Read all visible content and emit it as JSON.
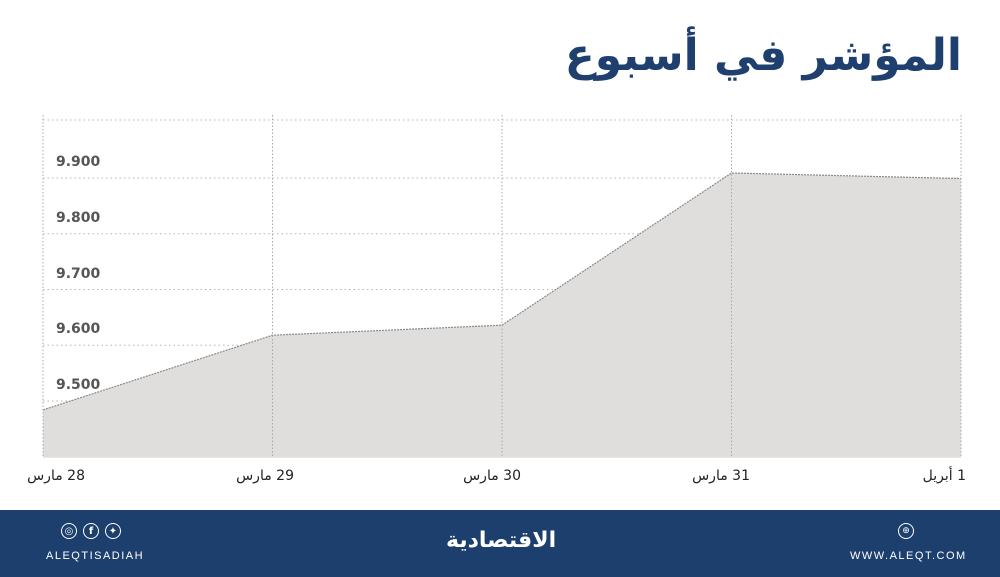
{
  "header": {
    "title": "المؤشر في أسبوع"
  },
  "chart_data": {
    "type": "area",
    "title": "المؤشر في أسبوع",
    "categories": [
      "28 مارس",
      "29 مارس",
      "30 مارس",
      "31 مارس",
      "1 أبريل"
    ],
    "series": [
      {
        "name": "المؤشر",
        "values": [
          9484,
          9618,
          9636,
          9909,
          9899
        ]
      }
    ],
    "yticks": [
      "9.500",
      "9.600",
      "9.700",
      "9.800",
      "9.900"
    ],
    "ylim": [
      9400,
      10010
    ],
    "xlabel": "",
    "ylabel": "",
    "grid": true,
    "fill_color": "#e0dddd",
    "line_color": "#8a8a8a"
  },
  "footer": {
    "social_icons": [
      "instagram-icon",
      "facebook-icon",
      "twitter-icon"
    ],
    "handle": "ALEQTISADIAH",
    "logo": "الاقتصادية",
    "website_icon": "globe-icon",
    "website": "WWW.ALEQT.COM",
    "bg_color": "#1c3f6e"
  }
}
